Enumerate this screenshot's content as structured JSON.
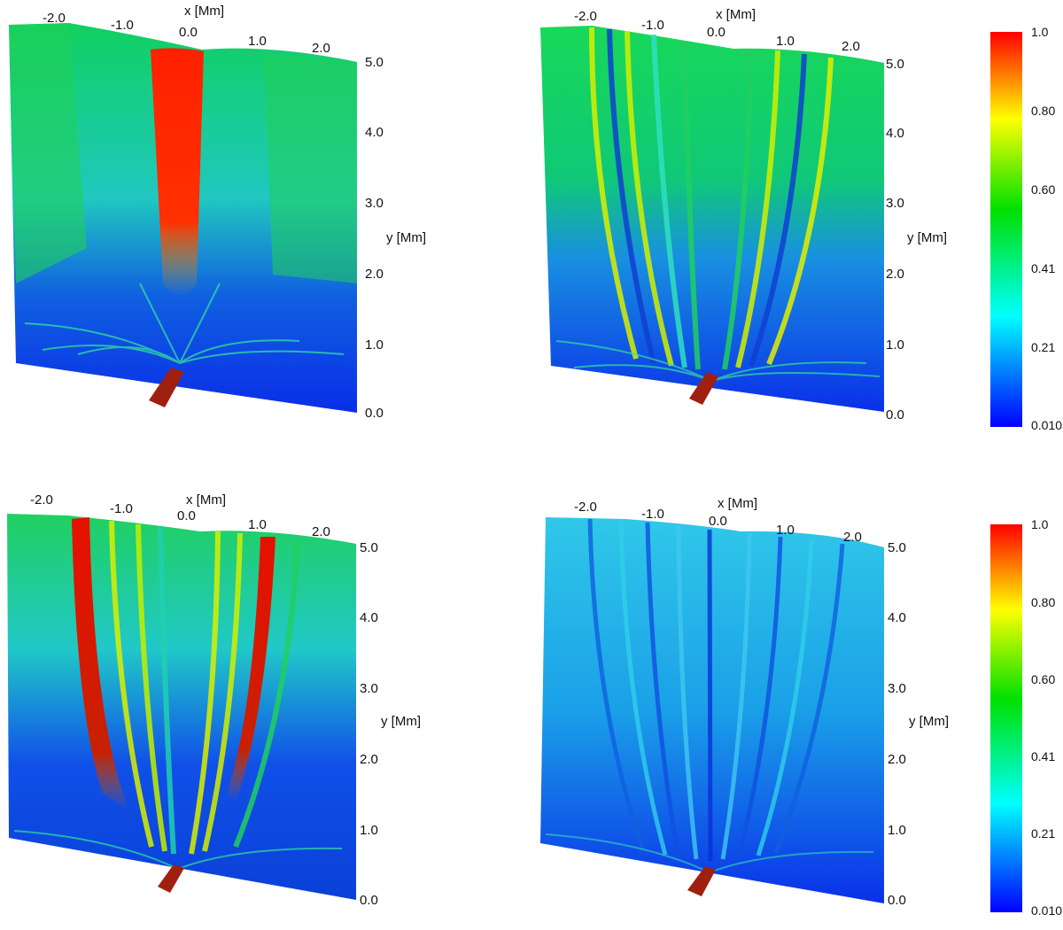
{
  "panels": [
    {
      "id": "top-left",
      "x_label": "x [Mm]",
      "y_label": "y [Mm]",
      "x_ticks": [
        "-2.0",
        "-1.0",
        "0.0",
        "1.0",
        "2.0"
      ],
      "y_ticks": [
        "5.0",
        "4.0",
        "3.0",
        "2.0",
        "1.0",
        "0.0"
      ]
    },
    {
      "id": "top-right",
      "x_label": "x [Mm]",
      "y_label": "y [Mm]",
      "x_ticks": [
        "-2.0",
        "-1.0",
        "0.0",
        "1.0",
        "2.0"
      ],
      "y_ticks": [
        "5.0",
        "4.0",
        "3.0",
        "2.0",
        "1.0",
        "0.0"
      ]
    },
    {
      "id": "bottom-left",
      "x_label": "x [Mm]",
      "y_label": "y [Mm]",
      "x_ticks": [
        "-2.0",
        "-1.0",
        "0.0",
        "1.0",
        "2.0"
      ],
      "y_ticks": [
        "5.0",
        "4.0",
        "3.0",
        "2.0",
        "1.0",
        "0.0"
      ]
    },
    {
      "id": "bottom-right",
      "x_label": "x [Mm]",
      "y_label": "y [Mm]",
      "x_ticks": [
        "-2.0",
        "-1.0",
        "0.0",
        "1.0",
        "2.0"
      ],
      "y_ticks": [
        "5.0",
        "4.0",
        "3.0",
        "2.0",
        "1.0",
        "0.0"
      ]
    }
  ],
  "colorbars": [
    {
      "ticks": [
        "1.0",
        "0.80",
        "0.60",
        "0.41",
        "0.21",
        "0.010"
      ]
    },
    {
      "ticks": [
        "1.0",
        "0.80",
        "0.60",
        "0.41",
        "0.21",
        "0.010"
      ]
    }
  ],
  "colors": {
    "jet_red": "#ff0000",
    "jet_yellow": "#ffff00",
    "jet_green": "#00e000",
    "jet_cyan": "#00ffff",
    "jet_blue": "#0000ff"
  }
}
